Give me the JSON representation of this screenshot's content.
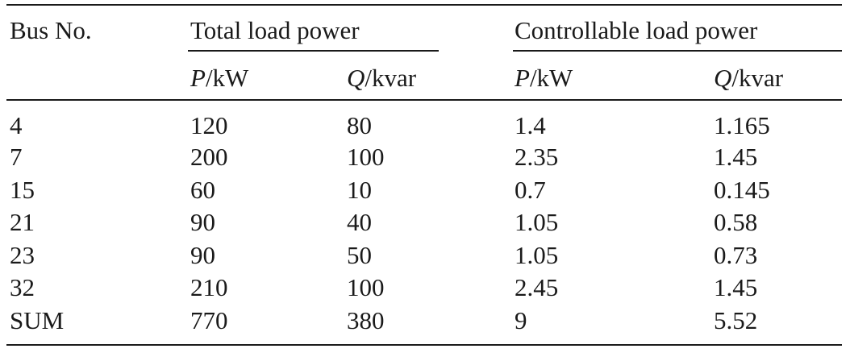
{
  "table": {
    "header": {
      "bus_no": "Bus No.",
      "total_group": "Total load power",
      "controllable_group": "Controllable load power",
      "sub": [
        {
          "var": "P",
          "unit": "/kW"
        },
        {
          "var": "Q",
          "unit": "/kvar"
        },
        {
          "var": "P",
          "unit": "/kW"
        },
        {
          "var": "Q",
          "unit": "/kvar"
        }
      ]
    },
    "rows": [
      {
        "bus": "4",
        "total_p": "120",
        "total_q": "80",
        "ctrl_p": "1.4",
        "ctrl_q": "1.165"
      },
      {
        "bus": "7",
        "total_p": "200",
        "total_q": "100",
        "ctrl_p": "2.35",
        "ctrl_q": "1.45"
      },
      {
        "bus": "15",
        "total_p": "60",
        "total_q": "10",
        "ctrl_p": "0.7",
        "ctrl_q": "0.145"
      },
      {
        "bus": "21",
        "total_p": "90",
        "total_q": "40",
        "ctrl_p": "1.05",
        "ctrl_q": "0.58"
      },
      {
        "bus": "23",
        "total_p": "90",
        "total_q": "50",
        "ctrl_p": "1.05",
        "ctrl_q": "0.73"
      },
      {
        "bus": "32",
        "total_p": "210",
        "total_q": "100",
        "ctrl_p": "2.45",
        "ctrl_q": "1.45"
      },
      {
        "bus": "SUM",
        "total_p": "770",
        "total_q": "380",
        "ctrl_p": "9",
        "ctrl_q": "5.52"
      }
    ]
  }
}
